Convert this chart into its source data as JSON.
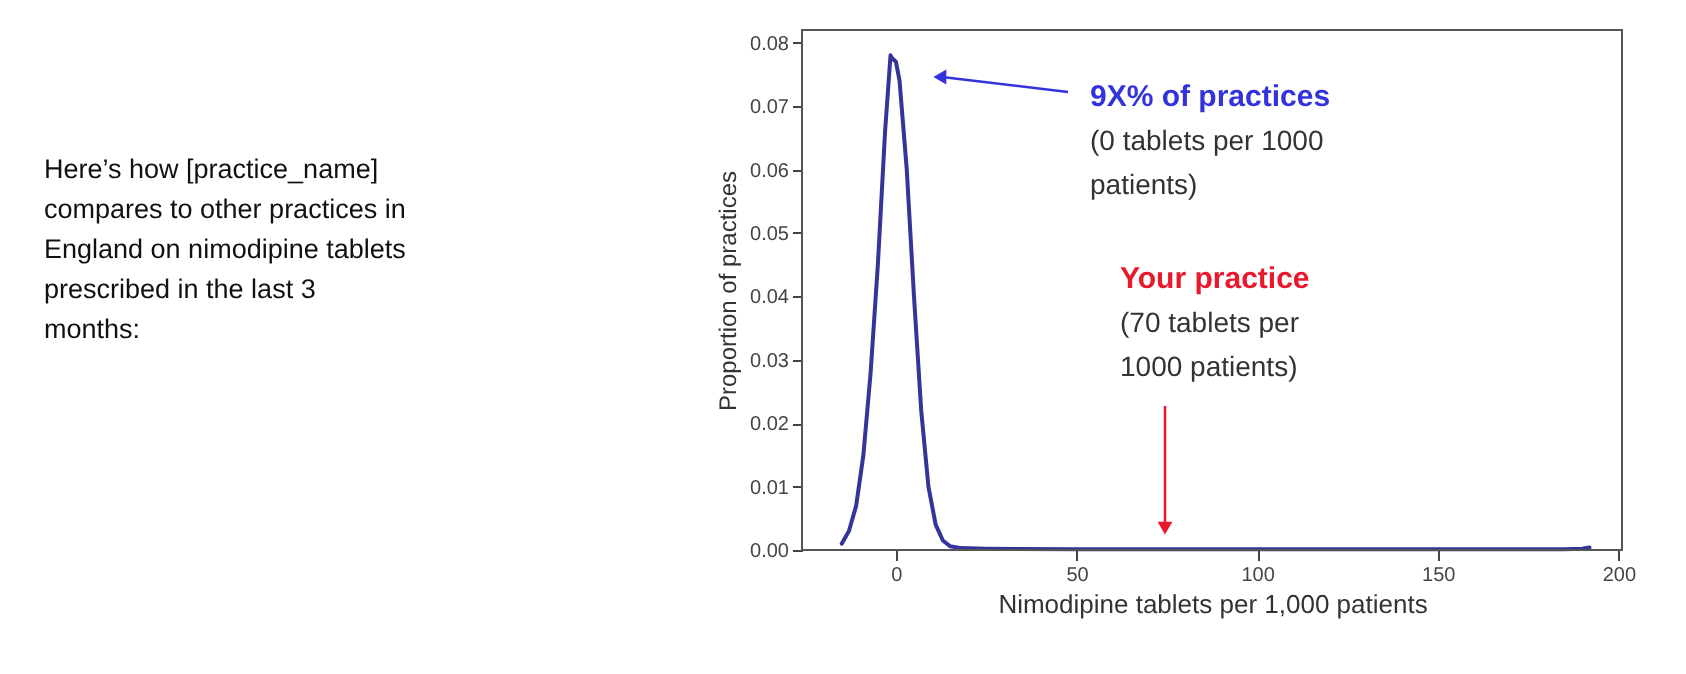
{
  "chart_data": {
    "type": "line",
    "xlabel": "Nimodipine tablets per 1,000 patients",
    "ylabel": "Proportion of practices",
    "series": [
      {
        "color": "#34349a",
        "x": [
          -15,
          -13,
          -11,
          -9,
          -7,
          -5,
          -3,
          -1.5,
          -1,
          0,
          1,
          3,
          5,
          7,
          9,
          11,
          13,
          15,
          18,
          25,
          50,
          100,
          150,
          185,
          190,
          192
        ],
        "values": [
          0.001,
          0.003,
          0.007,
          0.015,
          0.028,
          0.045,
          0.066,
          0.078,
          0.0775,
          0.077,
          0.074,
          0.06,
          0.04,
          0.022,
          0.01,
          0.004,
          0.0015,
          0.0006,
          0.0003,
          0.0002,
          0.0001,
          0.0001,
          0.0001,
          0.0001,
          0.0002,
          0.0004
        ]
      }
    ],
    "xlim": [
      -26,
      201
    ],
    "xticks": [
      0,
      50,
      100,
      150,
      200
    ],
    "ylim": [
      0,
      0.082
    ],
    "yticks": [
      {
        "value": 0,
        "label": "0.00"
      },
      0.01,
      0.02,
      0.03,
      0.04,
      0.05,
      0.06,
      0.07,
      0.08
    ],
    "grid": false,
    "marker": "none",
    "line_style": "solid",
    "annotations": [
      "Here’s how [practice_name] compares to other practices in England on nimodipine tablets prescribed in the last 3 months:",
      "9X% of practices",
      "(0 tablets per 1000 patients)",
      "Your practice",
      "(70 tablets per 1000 patients)"
    ]
  }
}
